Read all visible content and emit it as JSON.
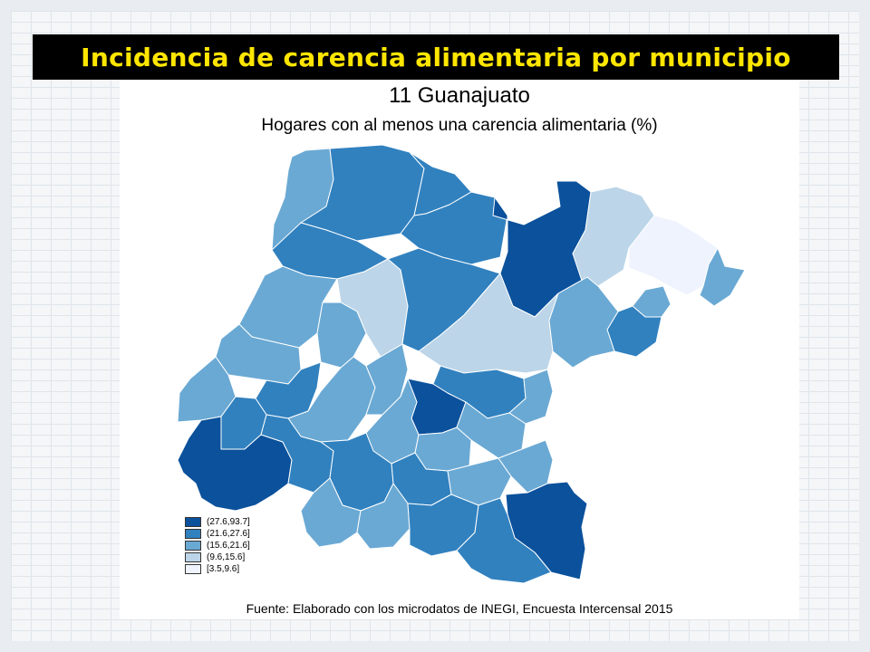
{
  "title": "Incidencia de carencia alimentaria por municipio",
  "map_title": "11 Guanajuato",
  "map_subtitle": "Hogares con al menos una carencia alimentaria (%)",
  "legend": [
    {
      "label": "(27.6,93.7]",
      "color": "#0b519c"
    },
    {
      "label": "(21.6,27.6]",
      "color": "#3181bf"
    },
    {
      "label": "(15.6,21.6]",
      "color": "#6aa9d4"
    },
    {
      "label": "(9.6,15.6]",
      "color": "#bcd5e8"
    },
    {
      "label": "[3.5,9.6]",
      "color": "#eef3fd"
    }
  ],
  "source": "Fuente: Elaborado con los microdatos de INEGI, Encuesta Intercensal 2015"
}
